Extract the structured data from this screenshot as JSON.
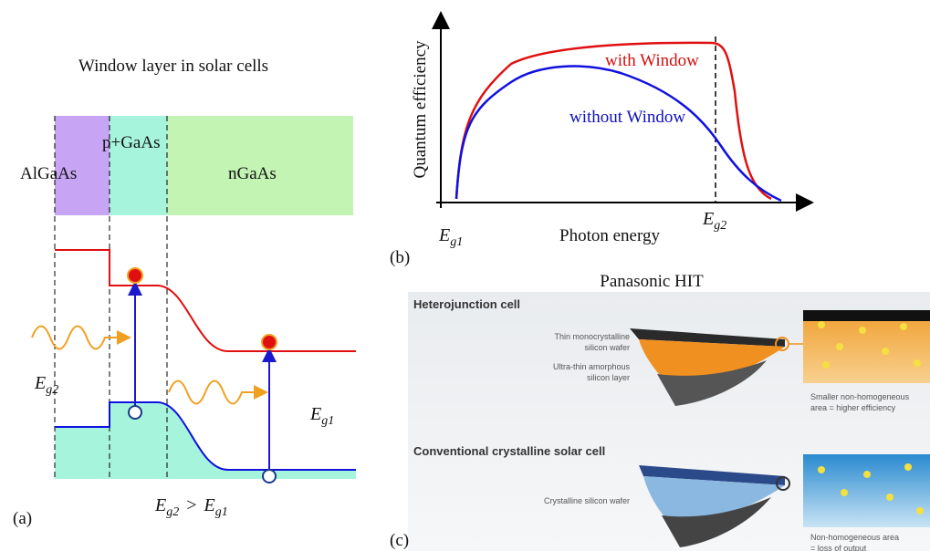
{
  "panel_a": {
    "title": "Window layer in solar cells",
    "layers": [
      "AlGaAs",
      "p+GaAs",
      "nGaAs"
    ],
    "gap_high": {
      "base": "E",
      "sub": "g2"
    },
    "gap_low": {
      "base": "E",
      "sub": "g1"
    },
    "relation": {
      "left": {
        "base": "E",
        "sub": "g2"
      },
      "op": ">",
      "right": {
        "base": "E",
        "sub": "g1"
      }
    },
    "label": "(a)"
  },
  "panel_b": {
    "y_label": "Quantum efficiency",
    "x_label": "Photon energy",
    "curves": [
      "with Window",
      "without Window"
    ],
    "x_start": {
      "base": "E",
      "sub": "g1"
    },
    "x_edge": {
      "base": "E",
      "sub": "g2"
    },
    "label": "(b)"
  },
  "panel_c": {
    "title": "Panasonic HIT",
    "top": {
      "heading": "Heterojunction cell",
      "callouts": [
        [
          "Thin monocrystalline",
          "silicon wafer"
        ],
        [
          "Ultra-thin amorphous",
          "silicon layer"
        ]
      ],
      "note": [
        "Smaller non-homogeneous",
        "area = higher efficiency"
      ]
    },
    "bottom": {
      "heading": "Conventional crystalline solar cell",
      "callouts": [
        [
          "Crystalline silicon wafer"
        ]
      ],
      "note": [
        "Non-homogeneous area",
        "= loss of output"
      ]
    },
    "label": "(c)"
  }
}
